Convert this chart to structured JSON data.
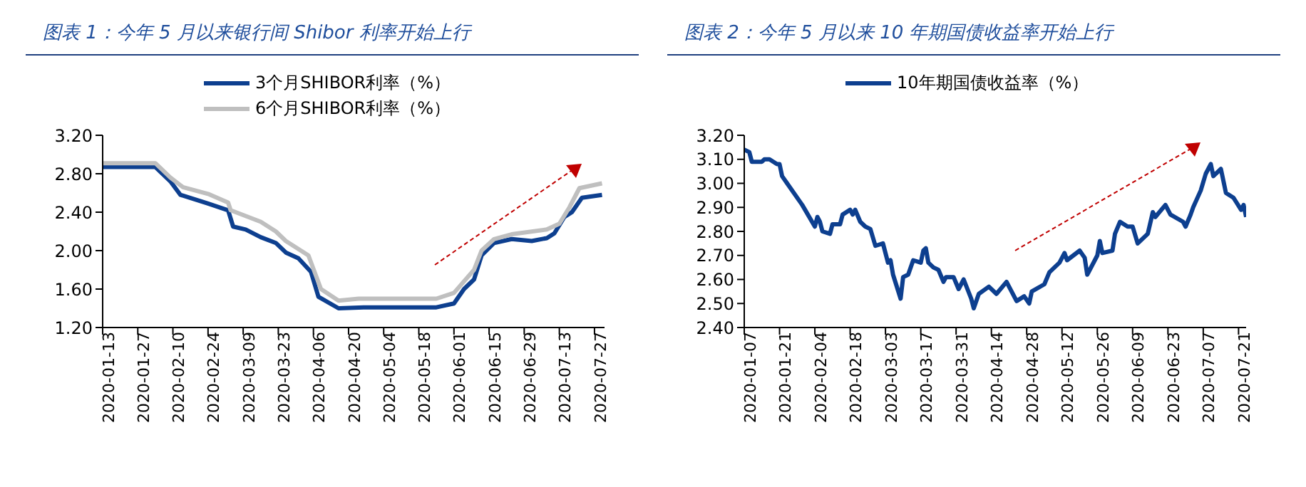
{
  "chart_data": [
    {
      "type": "line",
      "title": "图表 1：今年 5 月以来银行间 Shibor 利率开始上行",
      "legend": "top",
      "xlim": [
        "2020-01-13",
        "2020-07-31"
      ],
      "xticks": [
        "2020-01-13",
        "2020-01-27",
        "2020-02-10",
        "2020-02-24",
        "2020-03-09",
        "2020-03-23",
        "2020-04-06",
        "2020-04-20",
        "2020-05-04",
        "2020-05-18",
        "2020-06-01",
        "2020-06-15",
        "2020-06-29",
        "2020-07-13",
        "2020-07-27"
      ],
      "ylim": [
        1.2,
        3.2
      ],
      "yticks": [
        {
          "value": 1.2,
          "label": "1.20"
        },
        {
          "value": 1.6,
          "label": "1.60"
        },
        {
          "value": 2.0,
          "label": "2.00"
        },
        {
          "value": 2.4,
          "label": "2.40"
        },
        {
          "value": 2.8,
          "label": "2.80"
        },
        {
          "value": 3.2,
          "label": "3.20"
        }
      ],
      "series": [
        {
          "name": "3个月SHIBOR利率（%）",
          "color": "#0d3f8f",
          "x": [
            "2020-01-13",
            "2020-02-03",
            "2020-02-09",
            "2020-02-13",
            "2020-02-24",
            "2020-03-03",
            "2020-03-05",
            "2020-03-10",
            "2020-03-16",
            "2020-03-22",
            "2020-03-26",
            "2020-03-31",
            "2020-04-05",
            "2020-04-08",
            "2020-04-16",
            "2020-04-26",
            "2020-05-25",
            "2020-06-01",
            "2020-06-05",
            "2020-06-09",
            "2020-06-12",
            "2020-06-17",
            "2020-06-24",
            "2020-07-02",
            "2020-07-08",
            "2020-07-11",
            "2020-07-15",
            "2020-07-18",
            "2020-07-22",
            "2020-07-30"
          ],
          "values": [
            2.87,
            2.87,
            2.72,
            2.58,
            2.49,
            2.42,
            2.25,
            2.22,
            2.14,
            2.08,
            1.98,
            1.92,
            1.78,
            1.52,
            1.4,
            1.41,
            1.41,
            1.45,
            1.6,
            1.7,
            1.95,
            2.08,
            2.12,
            2.1,
            2.13,
            2.18,
            2.35,
            2.4,
            2.55,
            2.58
          ]
        },
        {
          "name": "6个月SHIBOR利率（%）",
          "color": "#bfbfbf",
          "x": [
            "2020-01-13",
            "2020-02-03",
            "2020-02-09",
            "2020-02-14",
            "2020-02-24",
            "2020-03-03",
            "2020-03-04",
            "2020-03-16",
            "2020-03-22",
            "2020-03-26",
            "2020-04-04",
            "2020-04-09",
            "2020-04-16",
            "2020-04-24",
            "2020-05-25",
            "2020-06-01",
            "2020-06-09",
            "2020-06-12",
            "2020-06-17",
            "2020-06-24",
            "2020-07-08",
            "2020-07-13",
            "2020-07-17",
            "2020-07-21",
            "2020-07-30"
          ],
          "values": [
            2.91,
            2.91,
            2.76,
            2.66,
            2.59,
            2.5,
            2.42,
            2.3,
            2.2,
            2.1,
            1.95,
            1.6,
            1.48,
            1.5,
            1.5,
            1.56,
            1.8,
            2.0,
            2.12,
            2.17,
            2.22,
            2.28,
            2.45,
            2.65,
            2.7
          ]
        }
      ]
    },
    {
      "type": "line",
      "title": "图表 2：今年 5 月以来 10 年期国债收益率开始上行",
      "legend": "top",
      "xlim": [
        "2020-01-07",
        "2020-07-24"
      ],
      "xticks": [
        "2020-01-07",
        "2020-01-21",
        "2020-02-04",
        "2020-02-18",
        "2020-03-03",
        "2020-03-17",
        "2020-03-31",
        "2020-04-14",
        "2020-04-28",
        "2020-05-12",
        "2020-05-26",
        "2020-06-09",
        "2020-06-23",
        "2020-07-07",
        "2020-07-21"
      ],
      "ylim": [
        2.4,
        3.2
      ],
      "yticks": [
        {
          "value": 2.4,
          "label": "2.40"
        },
        {
          "value": 2.5,
          "label": "2.50"
        },
        {
          "value": 2.6,
          "label": "2.60"
        },
        {
          "value": 2.7,
          "label": "2.70"
        },
        {
          "value": 2.8,
          "label": "2.80"
        },
        {
          "value": 2.9,
          "label": "2.90"
        },
        {
          "value": 3.0,
          "label": "3.00"
        },
        {
          "value": 3.1,
          "label": "3.10"
        },
        {
          "value": 3.2,
          "label": "3.20"
        }
      ],
      "series": [
        {
          "name": "10年期国债收益率（%）",
          "color": "#0d3f8f",
          "x": [
            "2020-01-07",
            "2020-01-09",
            "2020-01-10",
            "2020-01-14",
            "2020-01-15",
            "2020-01-17",
            "2020-01-20",
            "2020-01-21",
            "2020-01-22",
            "2020-01-24",
            "2020-01-30",
            "2020-02-04",
            "2020-02-05",
            "2020-02-06",
            "2020-02-07",
            "2020-02-10",
            "2020-02-11",
            "2020-02-14",
            "2020-02-15",
            "2020-02-18",
            "2020-02-19",
            "2020-02-20",
            "2020-02-22",
            "2020-02-24",
            "2020-02-26",
            "2020-02-28",
            "2020-03-02",
            "2020-03-04",
            "2020-03-05",
            "2020-03-06",
            "2020-03-09",
            "2020-03-10",
            "2020-03-12",
            "2020-03-14",
            "2020-03-17",
            "2020-03-18",
            "2020-03-19",
            "2020-03-20",
            "2020-03-22",
            "2020-03-24",
            "2020-03-26",
            "2020-03-27",
            "2020-03-30",
            "2020-04-01",
            "2020-04-03",
            "2020-04-06",
            "2020-04-07",
            "2020-04-09",
            "2020-04-13",
            "2020-04-16",
            "2020-04-20",
            "2020-04-24",
            "2020-04-27",
            "2020-04-29",
            "2020-04-30",
            "2020-05-05",
            "2020-05-07",
            "2020-05-11",
            "2020-05-13",
            "2020-05-14",
            "2020-05-19",
            "2020-05-21",
            "2020-05-22",
            "2020-05-26",
            "2020-05-27",
            "2020-05-28",
            "2020-06-01",
            "2020-06-02",
            "2020-06-04",
            "2020-06-07",
            "2020-06-09",
            "2020-06-11",
            "2020-06-15",
            "2020-06-17",
            "2020-06-18",
            "2020-06-22",
            "2020-06-24",
            "2020-06-29",
            "2020-06-30",
            "2020-07-02",
            "2020-07-03",
            "2020-07-06",
            "2020-07-08",
            "2020-07-10",
            "2020-07-11",
            "2020-07-14",
            "2020-07-16",
            "2020-07-19",
            "2020-07-22",
            "2020-07-23",
            "2020-07-24"
          ],
          "values": [
            3.14,
            3.13,
            3.09,
            3.09,
            3.1,
            3.1,
            3.08,
            3.08,
            3.03,
            3.0,
            2.91,
            2.82,
            2.86,
            2.84,
            2.8,
            2.79,
            2.83,
            2.83,
            2.87,
            2.89,
            2.87,
            2.89,
            2.84,
            2.82,
            2.81,
            2.74,
            2.75,
            2.67,
            2.68,
            2.62,
            2.52,
            2.61,
            2.62,
            2.68,
            2.67,
            2.72,
            2.73,
            2.67,
            2.65,
            2.64,
            2.59,
            2.61,
            2.61,
            2.56,
            2.6,
            2.52,
            2.48,
            2.54,
            2.57,
            2.54,
            2.59,
            2.51,
            2.53,
            2.5,
            2.55,
            2.58,
            2.63,
            2.67,
            2.71,
            2.68,
            2.72,
            2.69,
            2.62,
            2.7,
            2.76,
            2.71,
            2.72,
            2.79,
            2.84,
            2.82,
            2.82,
            2.75,
            2.79,
            2.88,
            2.86,
            2.91,
            2.87,
            2.84,
            2.82,
            2.87,
            2.9,
            2.97,
            3.04,
            3.08,
            3.03,
            3.06,
            2.96,
            2.94,
            2.89,
            2.91,
            2.86
          ]
        }
      ]
    }
  ]
}
